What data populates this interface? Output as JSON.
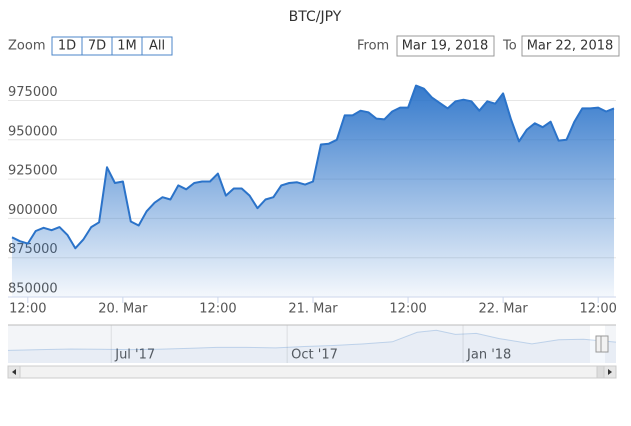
{
  "chart_data": {
    "type": "area",
    "title": "BTC/JPY",
    "color": "#2b73c9",
    "x": [
      "2018-03-19 10:00",
      "2018-03-19 11:00",
      "2018-03-19 12:00",
      "2018-03-19 13:00",
      "2018-03-19 14:00",
      "2018-03-19 15:00",
      "2018-03-19 16:00",
      "2018-03-19 17:00",
      "2018-03-19 18:00",
      "2018-03-19 19:00",
      "2018-03-19 20:00",
      "2018-03-19 21:00",
      "2018-03-19 22:00",
      "2018-03-19 23:00",
      "2018-03-20 00:00",
      "2018-03-20 01:00",
      "2018-03-20 02:00",
      "2018-03-20 03:00",
      "2018-03-20 04:00",
      "2018-03-20 05:00",
      "2018-03-20 06:00",
      "2018-03-20 07:00",
      "2018-03-20 08:00",
      "2018-03-20 09:00",
      "2018-03-20 10:00",
      "2018-03-20 11:00",
      "2018-03-20 12:00",
      "2018-03-20 13:00",
      "2018-03-20 14:00",
      "2018-03-20 15:00",
      "2018-03-20 16:00",
      "2018-03-20 17:00",
      "2018-03-20 18:00",
      "2018-03-20 19:00",
      "2018-03-20 20:00",
      "2018-03-20 21:00",
      "2018-03-20 22:00",
      "2018-03-20 23:00",
      "2018-03-21 00:00",
      "2018-03-21 01:00",
      "2018-03-21 02:00",
      "2018-03-21 03:00",
      "2018-03-21 04:00",
      "2018-03-21 05:00",
      "2018-03-21 06:00",
      "2018-03-21 07:00",
      "2018-03-21 08:00",
      "2018-03-21 09:00",
      "2018-03-21 10:00",
      "2018-03-21 11:00",
      "2018-03-21 12:00",
      "2018-03-21 13:00",
      "2018-03-21 14:00",
      "2018-03-21 15:00",
      "2018-03-21 16:00",
      "2018-03-21 17:00",
      "2018-03-21 18:00",
      "2018-03-21 19:00",
      "2018-03-21 20:00",
      "2018-03-21 21:00",
      "2018-03-21 22:00",
      "2018-03-21 23:00",
      "2018-03-22 00:00",
      "2018-03-22 01:00",
      "2018-03-22 02:00",
      "2018-03-22 03:00",
      "2018-03-22 04:00",
      "2018-03-22 05:00",
      "2018-03-22 06:00",
      "2018-03-22 07:00",
      "2018-03-22 08:00",
      "2018-03-22 09:00",
      "2018-03-22 10:00",
      "2018-03-22 11:00",
      "2018-03-22 12:00",
      "2018-03-22 13:00",
      "2018-03-22 14:00"
    ],
    "values": [
      888000,
      885500,
      884000,
      892000,
      894000,
      892500,
      894500,
      889500,
      881000,
      886500,
      894500,
      897500,
      932500,
      922500,
      923500,
      898000,
      895500,
      904500,
      910000,
      913500,
      912000,
      921000,
      918500,
      922500,
      923500,
      923500,
      928500,
      914500,
      919000,
      919000,
      914500,
      906500,
      912000,
      913500,
      921000,
      922500,
      923000,
      921500,
      923500,
      947000,
      947500,
      950000,
      965500,
      965500,
      968500,
      967500,
      963500,
      963000,
      968000,
      970500,
      970500,
      984500,
      982500,
      977000,
      973500,
      970000,
      974500,
      975500,
      974500,
      968500,
      974500,
      973000,
      979500,
      963000,
      949000,
      956500,
      960500,
      958000,
      961500,
      949500,
      950000,
      961500,
      970000,
      970000,
      970500,
      968000,
      970000
    ],
    "xlim": [
      "2018-03-19 09:30",
      "2018-03-22 14:15"
    ],
    "xticks": [
      {
        "value": "2018-03-19 12:00",
        "label": "12:00"
      },
      {
        "value": "2018-03-20 00:00",
        "label": "20. Mar"
      },
      {
        "value": "2018-03-20 12:00",
        "label": "12:00"
      },
      {
        "value": "2018-03-21 00:00",
        "label": "21. Mar"
      },
      {
        "value": "2018-03-21 12:00",
        "label": "12:00"
      },
      {
        "value": "2018-03-22 00:00",
        "label": "22. Mar"
      },
      {
        "value": "2018-03-22 12:00",
        "label": "12:00"
      }
    ],
    "ylim": [
      850000,
      999500
    ],
    "yticks": [
      850000,
      875000,
      900000,
      925000,
      950000,
      975000
    ],
    "grid": true
  },
  "controls": {
    "zoom_label": "Zoom",
    "buttons": [
      "1D",
      "7D",
      "1M",
      "All"
    ],
    "from_label": "From",
    "from": "Mar 19, 2018",
    "to_label": "To",
    "to": "Mar 22, 2018"
  },
  "navigator": {
    "x": [
      "2017-05-08",
      "2017-05-25",
      "2017-06-10",
      "2017-06-25",
      "2017-07-10",
      "2017-07-25",
      "2017-08-10",
      "2017-08-25",
      "2017-09-10",
      "2017-09-25",
      "2017-10-10",
      "2017-10-25",
      "2017-11-10",
      "2017-11-25",
      "2017-12-08",
      "2017-12-18",
      "2017-12-28",
      "2018-01-08",
      "2018-01-20",
      "2018-02-06",
      "2018-02-20",
      "2018-03-05",
      "2018-03-22"
    ],
    "values": [
      190000,
      270000,
      320000,
      290000,
      270000,
      300000,
      380000,
      470000,
      470000,
      430000,
      560000,
      650000,
      800000,
      1000000,
      1900000,
      2100000,
      1700000,
      1800000,
      1300000,
      800000,
      1200000,
      1250000,
      970000
    ],
    "xlim": [
      "2017-05-08",
      "2018-03-22"
    ],
    "ylim": [
      -1000000,
      2400000
    ],
    "xticks": [
      {
        "value": "2017-07-01",
        "label": "Jul '17"
      },
      {
        "value": "2017-10-01",
        "label": "Oct '17"
      },
      {
        "value": "2018-01-01",
        "label": "Jan '18"
      }
    ]
  }
}
